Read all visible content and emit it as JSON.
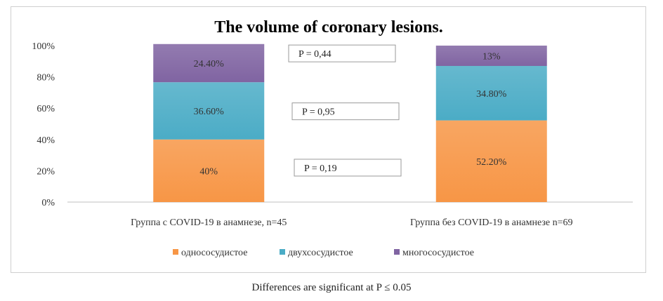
{
  "chart_data": {
    "type": "bar",
    "stacked": true,
    "title": "The volume of coronary lesions.",
    "categories": [
      "Группа с COVID-19 в анамнезе, n=45",
      "Группа без COVID-19 в анамнезе n=69"
    ],
    "series": [
      {
        "name": "однососудистое",
        "values": [
          40,
          52.2
        ],
        "labels": [
          "40%",
          "52.20%"
        ],
        "color": "#f79646"
      },
      {
        "name": "двухсосудистое",
        "values": [
          36.6,
          34.8
        ],
        "labels": [
          "36.60%",
          "34.80%"
        ],
        "color": "#4bacc6"
      },
      {
        "name": "многососудистое",
        "values": [
          24.4,
          13
        ],
        "labels": [
          "24.40%",
          "13%"
        ],
        "color": "#8064a2"
      }
    ],
    "ylim": [
      0,
      100
    ],
    "yticks": [
      "0%",
      "20%",
      "40%",
      "60%",
      "80%",
      "100%"
    ],
    "ytick_values": [
      0,
      20,
      40,
      60,
      80,
      100
    ],
    "xlabel": "",
    "ylabel": "",
    "grid": false,
    "legend": "bottom",
    "annotations": [
      {
        "text": "P = 0,44",
        "level": 95
      },
      {
        "text": "P = 0,95",
        "level": 58
      },
      {
        "text": "P = 0,19",
        "level": 22
      }
    ]
  },
  "footnote": "Differences are significant at P ≤ 0.05"
}
